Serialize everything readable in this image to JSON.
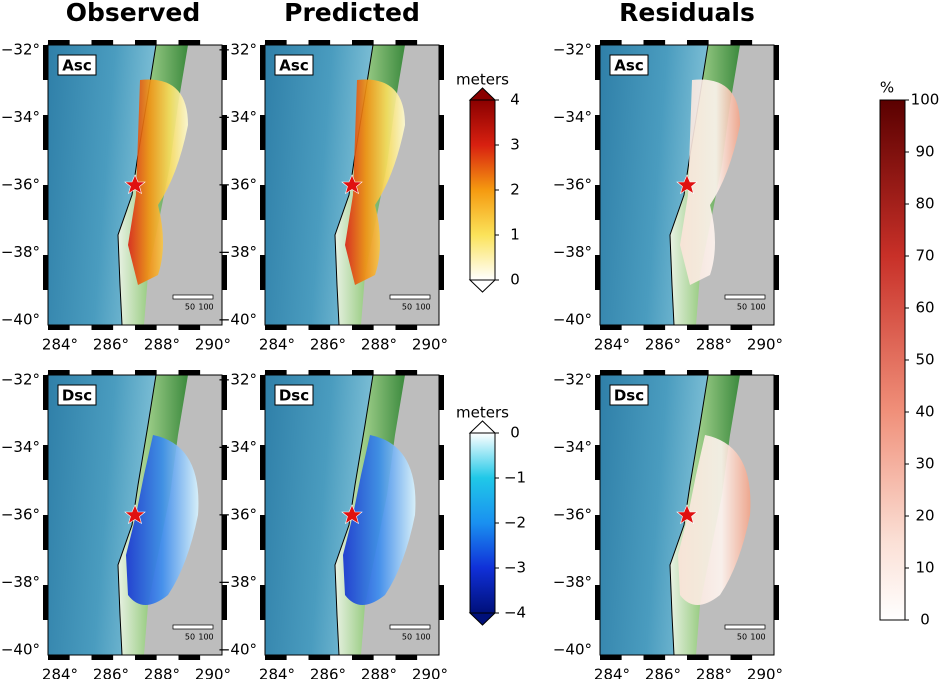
{
  "columns": [
    "Observed",
    "Predicted",
    "Residuals"
  ],
  "rows": [
    "Asc",
    "Dsc"
  ],
  "lat_ticks": [
    "−32°",
    "−34°",
    "−36°",
    "−38°",
    "−40°"
  ],
  "lon_ticks": [
    "284°",
    "286°",
    "288°",
    "290°"
  ],
  "scale_bar": [
    "50",
    "100"
  ],
  "colorbars": [
    {
      "unit": "meters",
      "labels": [
        "4",
        "3",
        "2",
        "1",
        "0"
      ]
    },
    {
      "unit": "meters",
      "labels": [
        "0",
        "−1",
        "−2",
        "−3",
        "−4"
      ]
    },
    {
      "unit": "%",
      "labels": [
        "100",
        "90",
        "80",
        "70",
        "60",
        "50",
        "40",
        "30",
        "20",
        "10",
        "0"
      ]
    }
  ]
}
